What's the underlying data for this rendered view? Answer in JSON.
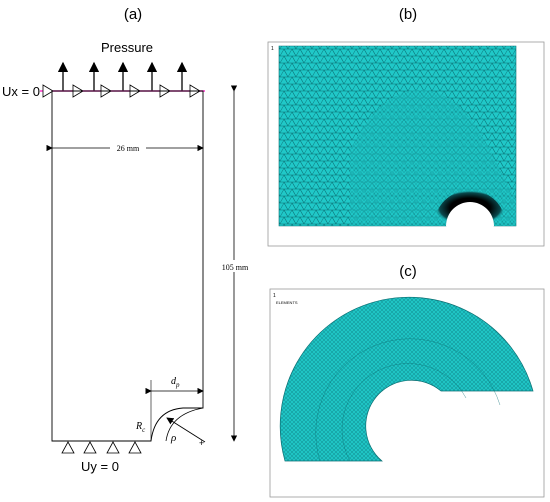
{
  "panels": {
    "a": {
      "label": "(a)"
    },
    "b": {
      "label": "(b)",
      "corner_text": "1"
    },
    "c": {
      "label": "(c)",
      "corner_text": "1",
      "info_text": "ELEMENTS"
    }
  },
  "diagram": {
    "load_label": "Pressure",
    "bc_top": "Ux = 0",
    "bc_bottom": "Uy = 0",
    "width_dim": "26 mm",
    "height_dim": "105 mm",
    "notch_depth_base": "d",
    "notch_depth_sub": "p",
    "radius_base": "R",
    "radius_sub": "c",
    "rho": "ρ"
  },
  "colors": {
    "mesh_fill": "#20c8c8",
    "mesh_line": "#0a6f73",
    "mesh_dense": "#000000",
    "bc_line": "#ff33cc"
  }
}
